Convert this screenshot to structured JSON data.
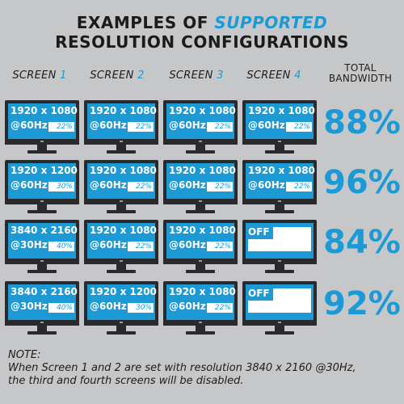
{
  "title": {
    "line1_before": "EXAMPLES OF ",
    "line1_accent": "SUPPORTED",
    "line2": "RESOLUTION CONFIGURATIONS"
  },
  "headers": {
    "screen_word": "SCREEN",
    "screen_numbers": [
      "1",
      "2",
      "3",
      "4"
    ],
    "bandwidth_line1": "TOTAL",
    "bandwidth_line2": "BANDWIDTH"
  },
  "colors": {
    "accent": "#1b9ad6",
    "background": "#c6c7c9",
    "bezel": "#2a2a2c"
  },
  "rows": [
    {
      "total": "88%",
      "screens": [
        {
          "res": "1920 x 1080",
          "hz": "@60Hz",
          "pct": "22%"
        },
        {
          "res": "1920 x 1080",
          "hz": "@60Hz",
          "pct": "22%"
        },
        {
          "res": "1920 x 1080",
          "hz": "@60Hz",
          "pct": "22%"
        },
        {
          "res": "1920 x 1080",
          "hz": "@60Hz",
          "pct": "22%"
        }
      ]
    },
    {
      "total": "96%",
      "screens": [
        {
          "res": "1920 x 1200",
          "hz": "@60Hz",
          "pct": "30%"
        },
        {
          "res": "1920 x 1080",
          "hz": "@60Hz",
          "pct": "22%"
        },
        {
          "res": "1920 x 1080",
          "hz": "@60Hz",
          "pct": "22%"
        },
        {
          "res": "1920 x 1080",
          "hz": "@60Hz",
          "pct": "22%"
        }
      ]
    },
    {
      "total": "84%",
      "screens": [
        {
          "res": "3840 x 2160",
          "hz": "@30Hz",
          "pct": "40%"
        },
        {
          "res": "1920 x 1080",
          "hz": "@60Hz",
          "pct": "22%"
        },
        {
          "res": "1920 x 1080",
          "hz": "@60Hz",
          "pct": "22%"
        },
        {
          "off": "OFF"
        }
      ]
    },
    {
      "total": "92%",
      "screens": [
        {
          "res": "3840 x 2160",
          "hz": "@30Hz",
          "pct": "40%"
        },
        {
          "res": "1920 x 1200",
          "hz": "@60Hz",
          "pct": "30%"
        },
        {
          "res": "1920 x 1080",
          "hz": "@60Hz",
          "pct": "22%"
        },
        {
          "off": "OFF"
        }
      ]
    }
  ],
  "note": {
    "label": "NOTE:",
    "line1": "When Screen 1 and 2 are set with resolution 3840 x 2160 @30Hz,",
    "line2": "the third and fourth screens will be disabled."
  }
}
